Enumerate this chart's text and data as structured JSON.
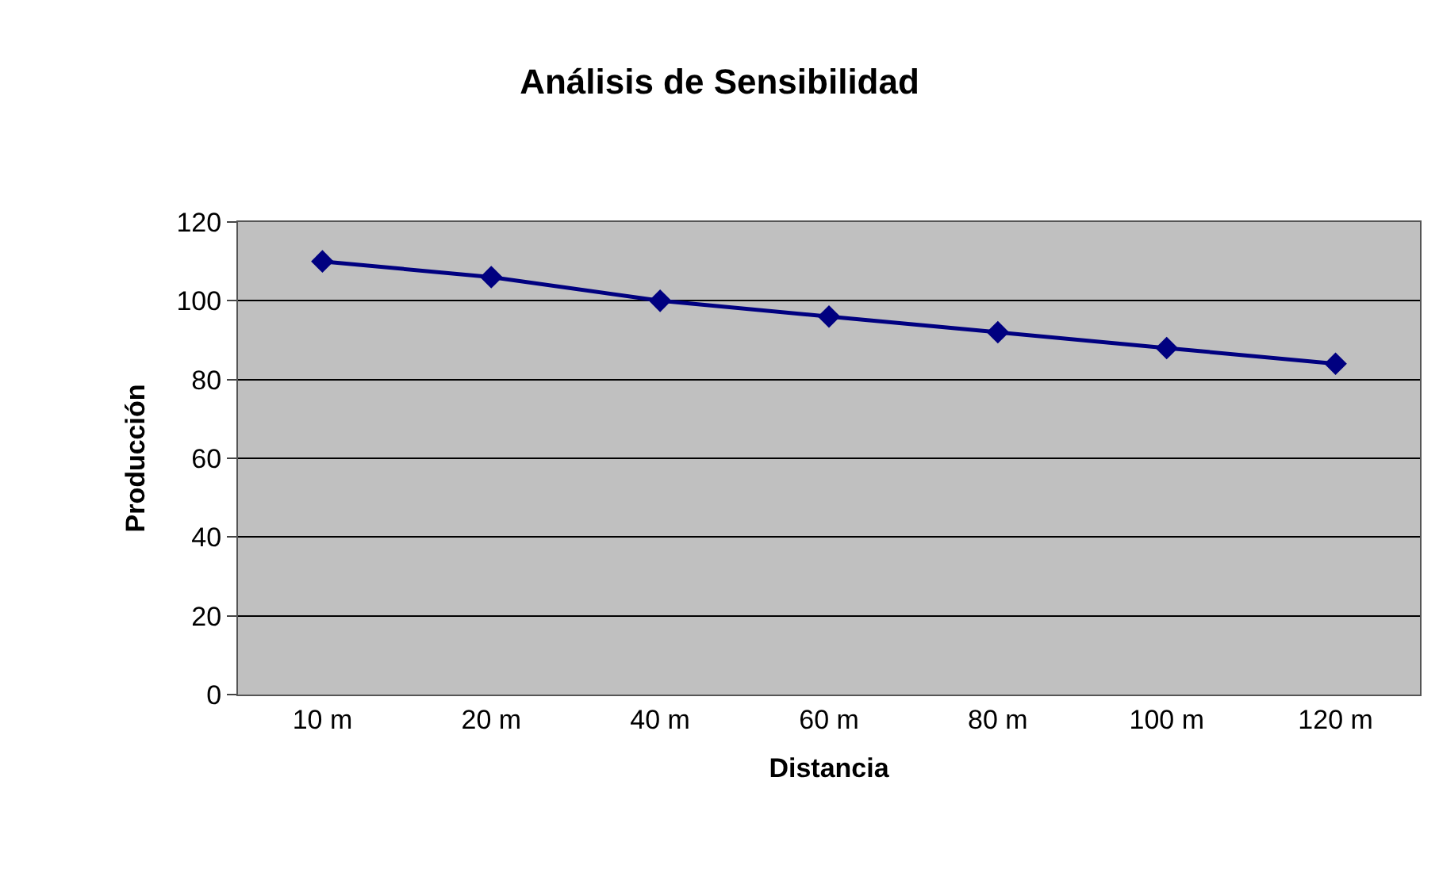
{
  "chart_data": {
    "type": "line",
    "title": "Análisis de Sensibilidad",
    "xlabel": "Distancia",
    "ylabel": "Producción",
    "categories": [
      "10 m",
      "20 m",
      "40 m",
      "60 m",
      "80 m",
      "100 m",
      "120 m"
    ],
    "series": [
      {
        "color": "#000080",
        "values": [
          110,
          106,
          100,
          96,
          92,
          88,
          84
        ]
      }
    ],
    "ylim": [
      0,
      120
    ],
    "yticks": [
      0,
      20,
      40,
      60,
      80,
      100,
      120
    ],
    "grid": "y",
    "legend": false,
    "marker": "diamond",
    "line_style": "solid"
  }
}
